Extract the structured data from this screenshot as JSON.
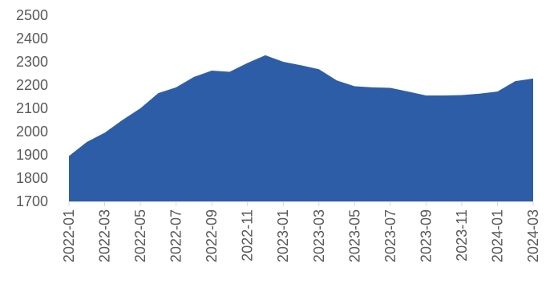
{
  "chart_data": {
    "type": "area",
    "title": "",
    "xlabel": "",
    "ylabel": "",
    "ylim": [
      1700,
      2500
    ],
    "yticks": [
      1700,
      1800,
      1900,
      2000,
      2100,
      2200,
      2300,
      2400,
      2500
    ],
    "grid": false,
    "legend": "none",
    "fill_color": "#2E5DA8",
    "axis_color": "#D9D9D9",
    "label_color": "#595959",
    "x": [
      "2022-01",
      "2022-02",
      "2022-03",
      "2022-04",
      "2022-05",
      "2022-06",
      "2022-07",
      "2022-08",
      "2022-09",
      "2022-10",
      "2022-11",
      "2022-12",
      "2023-01",
      "2023-02",
      "2023-03",
      "2023-04",
      "2023-05",
      "2023-06",
      "2023-07",
      "2023-08",
      "2023-09",
      "2023-10",
      "2023-11",
      "2023-12",
      "2024-01",
      "2024-02",
      "2024-03"
    ],
    "x_tick_labels": [
      "2022-01",
      "2022-03",
      "2022-05",
      "2022-07",
      "2022-09",
      "2022-11",
      "2023-01",
      "2023-03",
      "2023-05",
      "2023-07",
      "2023-09",
      "2023-11",
      "2024-01",
      "2024-03"
    ],
    "series": [
      {
        "values": [
          1895,
          1955,
          1995,
          2050,
          2100,
          2165,
          2190,
          2235,
          2262,
          2257,
          2295,
          2328,
          2300,
          2285,
          2268,
          2220,
          2195,
          2190,
          2188,
          2172,
          2155,
          2155,
          2157,
          2163,
          2172,
          2217,
          2228
        ]
      }
    ]
  }
}
